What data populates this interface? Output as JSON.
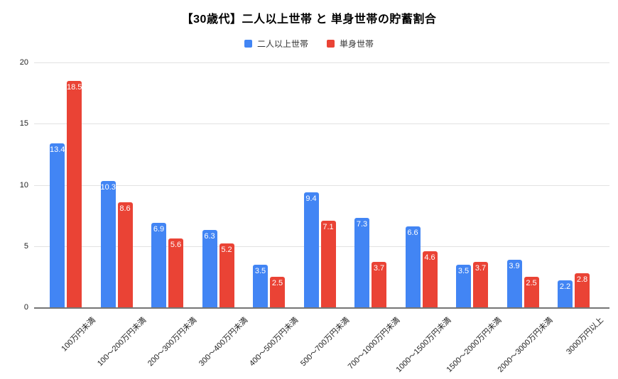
{
  "chart_data": {
    "type": "bar",
    "title": "【30歳代】二人以上世帯 と 単身世帯の貯蓄割合",
    "categories": [
      "100万円未満",
      "100〜200万円未満",
      "200〜300万円未満",
      "300〜400万円未満",
      "400〜500万円未満",
      "500〜700万円未満",
      "700〜1000万円未満",
      "1000〜1500万円未満",
      "1500〜2000万円未満",
      "2000〜3000万円未満",
      "3000万円以上"
    ],
    "series": [
      {
        "name": "二人以上世帯",
        "color": "#4285f4",
        "values": [
          13.4,
          10.3,
          6.9,
          6.3,
          3.5,
          9.4,
          7.3,
          6.6,
          3.5,
          3.9,
          2.2
        ]
      },
      {
        "name": "単身世帯",
        "color": "#ea4335",
        "values": [
          18.5,
          8.6,
          5.6,
          5.2,
          2.5,
          7.1,
          3.7,
          4.6,
          3.7,
          2.5,
          2.8
        ]
      }
    ],
    "ylim": [
      0,
      20
    ],
    "yticks": [
      0,
      5,
      10,
      15,
      20
    ],
    "grid": true,
    "legend_position": "top",
    "value_labels": "inside-top",
    "value_label_color": "#ffffff",
    "axis_color": "#757575",
    "gridline_color": "#e2e2e2",
    "background_color": "#ffffff"
  }
}
